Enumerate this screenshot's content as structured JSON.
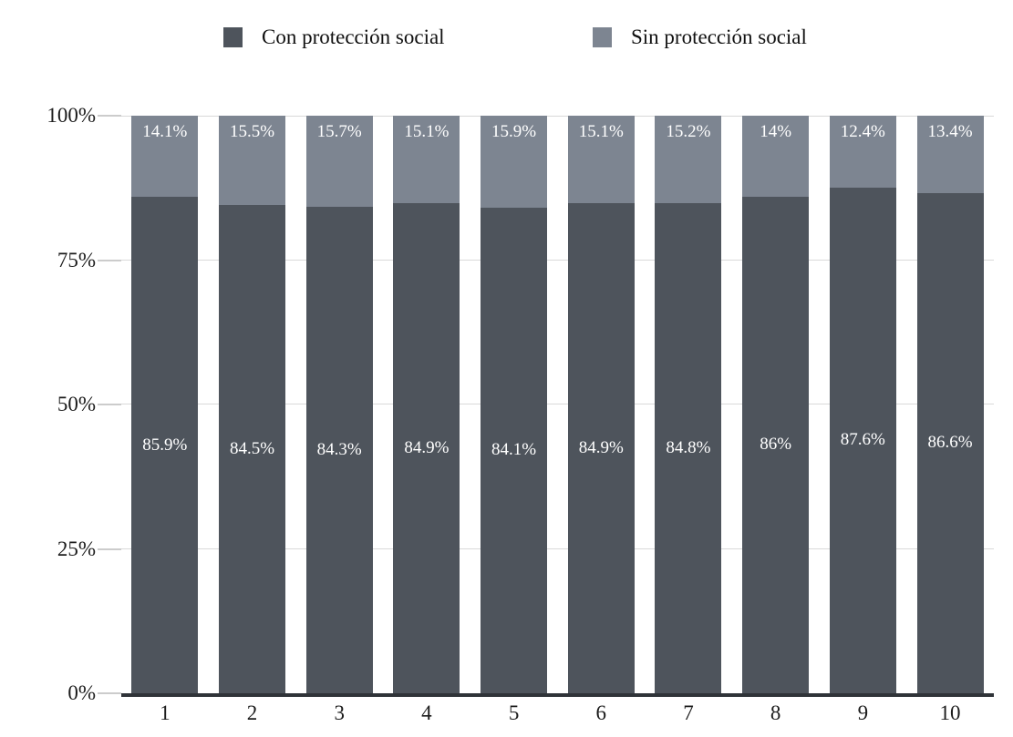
{
  "chart_data": {
    "type": "bar",
    "stacked": true,
    "orientation": "vertical",
    "categories": [
      "1",
      "2",
      "3",
      "4",
      "5",
      "6",
      "7",
      "8",
      "9",
      "10"
    ],
    "series": [
      {
        "name": "Con protección social",
        "color": "#4e545c",
        "values": [
          85.9,
          84.5,
          84.3,
          84.9,
          84.1,
          84.9,
          84.8,
          86,
          87.6,
          86.6
        ],
        "labels": [
          "85.9%",
          "84.5%",
          "84.3%",
          "84.9%",
          "84.1%",
          "84.9%",
          "84.8%",
          "86%",
          "87.6%",
          "86.6%"
        ]
      },
      {
        "name": "Sin protección social",
        "color": "#7d8591",
        "values": [
          14.1,
          15.5,
          15.7,
          15.1,
          15.9,
          15.1,
          15.2,
          14,
          12.4,
          13.4
        ],
        "labels": [
          "14.1%",
          "15.5%",
          "15.7%",
          "15.1%",
          "15.9%",
          "15.1%",
          "15.2%",
          "14%",
          "12.4%",
          "13.4%"
        ]
      }
    ],
    "y_ticks": [
      {
        "label": "0%",
        "value": 0
      },
      {
        "label": "25%",
        "value": 25
      },
      {
        "label": "50%",
        "value": 50
      },
      {
        "label": "75%",
        "value": 75
      },
      {
        "label": "100%",
        "value": 100
      }
    ],
    "ylim": [
      0,
      100
    ],
    "grid": true,
    "legend_position": "top",
    "title": ""
  },
  "colors": {
    "grid": "#d9d9d9",
    "axis_line": "#2f3338",
    "label_on_bar": "#ffffff",
    "axis_text": "#1c1c1c"
  }
}
